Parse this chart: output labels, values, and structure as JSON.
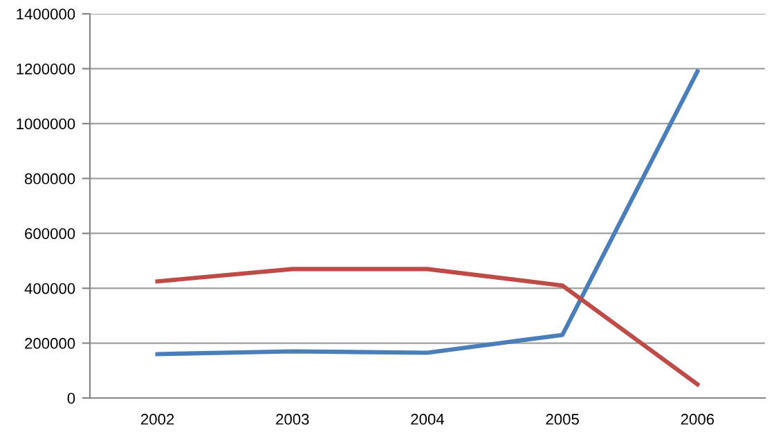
{
  "chart_data": {
    "type": "line",
    "categories": [
      "2002",
      "2003",
      "2004",
      "2005",
      "2006"
    ],
    "series": [
      {
        "color": "#4a7ebb",
        "values": [
          160000,
          170000,
          165000,
          230000,
          1190000
        ]
      },
      {
        "color": "#be4b48",
        "values": [
          425000,
          470000,
          470000,
          410000,
          50000
        ]
      }
    ],
    "ylim": [
      0,
      1400000
    ],
    "yticks": [
      0,
      200000,
      400000,
      600000,
      800000,
      1000000,
      1200000,
      1400000
    ],
    "grid": "y",
    "legend": false,
    "marker": "none",
    "line_style": "solid"
  }
}
